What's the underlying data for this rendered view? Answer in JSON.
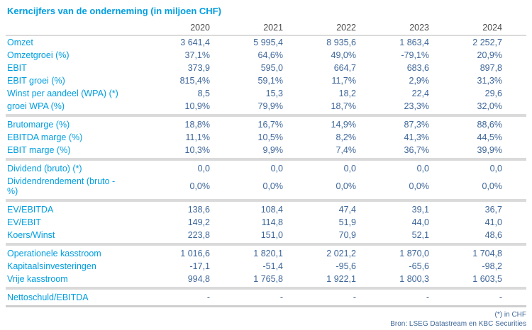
{
  "title": "Kerncijfers van de onderneming (in miljoen CHF)",
  "years": [
    "2020",
    "2021",
    "2022",
    "2023",
    "2024"
  ],
  "rows": [
    {
      "label": "Omzet",
      "v": [
        "3 641,4",
        "5 995,4",
        "8 935,6",
        "1 863,4",
        "2 252,7"
      ]
    },
    {
      "label": "Omzetgroei (%)",
      "v": [
        "37,1%",
        "64,6%",
        "49,0%",
        "-79,1%",
        "20,9%"
      ]
    },
    {
      "label": "EBIT",
      "v": [
        "373,9",
        "595,0",
        "664,7",
        "683,6",
        "897,8"
      ]
    },
    {
      "label": "EBIT groei (%)",
      "v": [
        "815,4%",
        "59,1%",
        "11,7%",
        "2,9%",
        "31,3%"
      ]
    },
    {
      "label": "Winst per aandeel (WPA) (*)",
      "v": [
        "8,5",
        "15,3",
        "18,2",
        "22,4",
        "29,6"
      ]
    },
    {
      "label": "groei WPA (%)",
      "v": [
        "10,9%",
        "79,9%",
        "18,7%",
        "23,3%",
        "32,0%"
      ]
    },
    {
      "label": "Brutomarge (%)",
      "v": [
        "18,8%",
        "16,7%",
        "14,9%",
        "87,3%",
        "88,6%"
      ]
    },
    {
      "label": "EBITDA marge (%)",
      "v": [
        "11,1%",
        "10,5%",
        "8,2%",
        "41,3%",
        "44,5%"
      ]
    },
    {
      "label": "EBIT marge (%)",
      "v": [
        "10,3%",
        "9,9%",
        "7,4%",
        "36,7%",
        "39,9%"
      ]
    },
    {
      "label": "Dividend (bruto) (*)",
      "v": [
        "0,0",
        "0,0",
        "0,0",
        "0,0",
        "0,0"
      ]
    },
    {
      "label": "Dividendrendement (bruto - %)",
      "v": [
        "0,0%",
        "0,0%",
        "0,0%",
        "0,0%",
        "0,0%"
      ]
    },
    {
      "label": "EV/EBITDA",
      "v": [
        "138,6",
        "108,4",
        "47,4",
        "39,1",
        "36,7"
      ]
    },
    {
      "label": "EV/EBIT",
      "v": [
        "149,2",
        "114,8",
        "51,9",
        "44,0",
        "41,0"
      ]
    },
    {
      "label": "Koers/Winst",
      "v": [
        "223,8",
        "151,0",
        "70,9",
        "52,1",
        "48,6"
      ]
    },
    {
      "label": "Operationele kasstroom",
      "v": [
        "1 016,6",
        "1 820,1",
        "2 021,2",
        "1 870,0",
        "1 704,8"
      ]
    },
    {
      "label": "Kapitaalsinvesteringen",
      "v": [
        "-17,1",
        "-51,4",
        "-95,6",
        "-65,6",
        "-98,2"
      ]
    },
    {
      "label": "Vrije kasstroom",
      "v": [
        "994,8",
        "1 765,8",
        "1 922,1",
        "1 800,3",
        "1 603,5"
      ]
    },
    {
      "label": "Nettoschuld/EBITDA",
      "v": [
        "-",
        "-",
        "-",
        "-",
        "-"
      ]
    }
  ],
  "footer": {
    "note": "(*) in CHF",
    "source": "Bron: LSEG Datastream en KBC Securities"
  },
  "colors": {
    "accent_blue": "#009EE0",
    "value_blue": "#3E6699",
    "year_gray": "#4D4D4F",
    "divider_gray": "#DADADA"
  }
}
